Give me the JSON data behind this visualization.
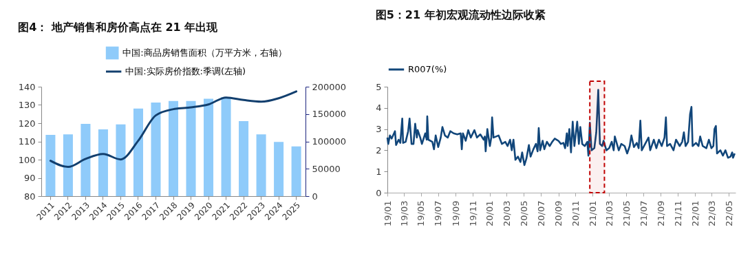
{
  "chart_data": [
    {
      "type": "bar",
      "title": "图4： 地产销售和房价高点在 21 年出现",
      "categories": [
        "2011",
        "2012",
        "2013",
        "2014",
        "2015",
        "2016",
        "2017",
        "2018",
        "2019",
        "2020",
        "2021",
        "2022",
        "2023",
        "2024",
        "2025"
      ],
      "series": [
        {
          "name": "中国:商品房销售面积（万平方米，右轴）",
          "type": "bar",
          "axis": "y2",
          "color": "#8fcbfa",
          "values": [
            112000,
            113000,
            132000,
            122000,
            131000,
            160000,
            171000,
            174000,
            174000,
            178000,
            181000,
            137000,
            113000,
            99000,
            91000
          ]
        },
        {
          "name": "中国:实际房价指数:季调(左轴)",
          "type": "line",
          "color": "#123f6e",
          "values": [
            99.4,
            96.0,
            100.4,
            103.1,
            100.1,
            110.4,
            124.3,
            127.7,
            128.7,
            130.3,
            134.1,
            132.7,
            131.8,
            133.7,
            137.4
          ]
        }
      ],
      "ylim": [
        80,
        140
      ],
      "yticks": [
        80,
        90,
        100,
        110,
        120,
        130,
        140
      ],
      "y2lim": [
        0,
        200000
      ],
      "y2ticks": [
        0,
        50000,
        100000,
        150000,
        200000
      ],
      "legend": "top",
      "grid": false
    },
    {
      "type": "line",
      "title": "图5：21 年初宏观流动性边际收紧",
      "x": [
        "2019-01-01",
        "2019-01-04",
        "2019-01-10",
        "2019-01-16",
        "2019-01-28",
        "2019-02-01",
        "2019-02-10",
        "2019-02-16",
        "2019-02-23",
        "2019-02-26",
        "2019-03-07",
        "2019-03-16",
        "2019-03-21",
        "2019-03-28",
        "2019-04-04",
        "2019-04-10",
        "2019-04-16",
        "2019-04-19",
        "2019-04-28",
        "2019-05-04",
        "2019-05-16",
        "2019-05-21",
        "2019-05-23",
        "2019-05-27",
        "2019-06-10",
        "2019-06-16",
        "2019-06-22",
        "2019-07-01",
        "2019-07-10",
        "2019-07-16",
        "2019-07-25",
        "2019-08-04",
        "2019-08-13",
        "2019-08-25",
        "2019-09-07",
        "2019-09-19",
        "2019-09-23",
        "2019-09-27",
        "2019-10-07",
        "2019-10-16",
        "2019-10-25",
        "2019-11-07",
        "2019-11-16",
        "2019-11-28",
        "2019-12-10",
        "2019-12-14",
        "2019-12-17",
        "2019-12-23",
        "2020-01-01",
        "2020-01-06",
        "2020-01-09",
        "2020-01-14",
        "2020-02-01",
        "2020-02-13",
        "2020-02-25",
        "2020-03-04",
        "2020-03-13",
        "2020-03-19",
        "2020-03-25",
        "2020-04-01",
        "2020-04-10",
        "2020-04-19",
        "2020-04-25",
        "2020-05-03",
        "2020-05-10",
        "2020-05-19",
        "2020-05-25",
        "2020-06-04",
        "2020-06-13",
        "2020-06-19",
        "2020-06-23",
        "2020-06-28",
        "2020-07-07",
        "2020-07-13",
        "2020-07-22",
        "2020-08-01",
        "2020-08-10",
        "2020-08-19",
        "2020-09-01",
        "2020-09-10",
        "2020-09-19",
        "2020-09-25",
        "2020-10-01",
        "2020-10-04",
        "2020-10-10",
        "2020-10-16",
        "2020-10-22",
        "2020-10-28",
        "2020-11-07",
        "2020-11-13",
        "2020-11-18",
        "2020-11-25",
        "2020-12-04",
        "2020-12-13",
        "2020-12-17",
        "2020-12-22",
        "2020-12-28",
        "2021-01-07",
        "2021-01-14",
        "2021-01-21",
        "2021-01-27",
        "2021-02-04",
        "2021-02-09",
        "2021-02-19",
        "2021-03-01",
        "2021-03-10",
        "2021-03-17",
        "2021-03-21",
        "2021-04-04",
        "2021-04-13",
        "2021-04-25",
        "2021-05-04",
        "2021-05-13",
        "2021-05-19",
        "2021-05-28",
        "2021-06-07",
        "2021-06-14",
        "2021-06-20",
        "2021-06-25",
        "2021-07-07",
        "2021-07-19",
        "2021-07-25",
        "2021-08-07",
        "2021-08-16",
        "2021-08-25",
        "2021-09-04",
        "2021-09-14",
        "2021-09-19",
        "2021-09-23",
        "2021-10-04",
        "2021-10-16",
        "2021-10-25",
        "2021-11-07",
        "2021-11-16",
        "2021-11-22",
        "2021-11-28",
        "2021-12-07",
        "2021-12-14",
        "2021-12-19",
        "2021-12-23",
        "2022-01-04",
        "2022-01-13",
        "2022-01-19",
        "2022-01-28",
        "2022-02-10",
        "2022-02-19",
        "2022-02-28",
        "2022-03-07",
        "2022-03-11",
        "2022-03-16",
        "2022-03-20",
        "2022-04-01",
        "2022-04-10",
        "2022-04-19",
        "2022-04-28",
        "2022-05-07",
        "2022-05-13",
        "2022-05-16",
        "2022-05-22"
      ],
      "series": [
        {
          "name": "R007(%)",
          "color": "#11467a",
          "values": [
            2.6,
            2.3,
            2.7,
            2.55,
            2.9,
            2.25,
            2.5,
            2.35,
            3.5,
            2.35,
            2.4,
            2.9,
            3.5,
            2.3,
            2.3,
            3.25,
            2.6,
            2.95,
            2.6,
            2.3,
            2.8,
            2.5,
            3.6,
            2.5,
            2.4,
            2.05,
            2.7,
            2.15,
            2.6,
            3.1,
            2.7,
            2.6,
            2.9,
            2.8,
            2.75,
            2.8,
            2.05,
            2.8,
            2.45,
            2.95,
            2.6,
            2.95,
            2.6,
            2.75,
            2.5,
            2.65,
            1.95,
            3.0,
            2.2,
            2.6,
            3.55,
            2.6,
            2.7,
            2.3,
            2.4,
            2.2,
            2.5,
            2.0,
            2.5,
            1.55,
            1.7,
            1.45,
            1.9,
            1.3,
            1.6,
            2.25,
            1.7,
            2.05,
            2.3,
            1.95,
            3.05,
            2.0,
            2.45,
            2.05,
            2.4,
            2.2,
            2.4,
            2.55,
            2.45,
            2.3,
            2.35,
            2.1,
            2.8,
            2.2,
            3.0,
            1.9,
            3.35,
            2.2,
            3.35,
            2.3,
            3.1,
            2.3,
            2.2,
            2.4,
            1.75,
            3.3,
            2.0,
            2.1,
            2.85,
            4.85,
            2.3,
            2.2,
            2.45,
            2.0,
            2.1,
            2.4,
            2.0,
            2.65,
            2.0,
            2.3,
            2.2,
            1.85,
            2.2,
            2.7,
            2.15,
            2.35,
            2.1,
            3.4,
            2.0,
            2.3,
            2.6,
            2.0,
            2.5,
            2.1,
            2.5,
            2.2,
            2.6,
            3.55,
            2.2,
            2.3,
            2.0,
            2.5,
            2.2,
            2.4,
            2.85,
            2.2,
            2.4,
            3.7,
            4.05,
            2.2,
            2.35,
            2.2,
            2.65,
            2.2,
            2.1,
            2.5,
            2.1,
            2.2,
            3.0,
            3.15,
            1.85,
            2.0,
            1.75,
            2.0,
            1.65,
            1.7,
            1.9,
            1.65,
            1.85
          ]
        }
      ],
      "xlim": [
        "2019-01-01",
        "2022-05-25"
      ],
      "xticks": [
        {
          "value": "2019-01-01",
          "label": "19/01"
        },
        {
          "value": "2019-03-01",
          "label": "19/03"
        },
        {
          "value": "2019-05-01",
          "label": "19/05"
        },
        {
          "value": "2019-07-01",
          "label": "19/07"
        },
        {
          "value": "2019-09-01",
          "label": "19/09"
        },
        {
          "value": "2019-11-01",
          "label": "19/11"
        },
        {
          "value": "2020-01-01",
          "label": "20/01"
        },
        {
          "value": "2020-03-01",
          "label": "20/03"
        },
        {
          "value": "2020-05-01",
          "label": "20/05"
        },
        {
          "value": "2020-07-01",
          "label": "20/07"
        },
        {
          "value": "2020-09-01",
          "label": "20/09"
        },
        {
          "value": "2020-11-01",
          "label": "20/11"
        },
        {
          "value": "2021-01-01",
          "label": "21/01"
        },
        {
          "value": "2021-03-01",
          "label": "21/03"
        },
        {
          "value": "2021-05-01",
          "label": "21/05"
        },
        {
          "value": "2021-07-01",
          "label": "21/07"
        },
        {
          "value": "2021-09-01",
          "label": "21/09"
        },
        {
          "value": "2021-11-01",
          "label": "21/11"
        },
        {
          "value": "2022-01-01",
          "label": "22/01"
        },
        {
          "value": "2022-03-01",
          "label": "22/03"
        },
        {
          "value": "2022-05-01",
          "label": "22/05"
        }
      ],
      "ylim": [
        0,
        5
      ],
      "yticks": [
        0,
        1,
        2,
        3,
        4,
        5
      ],
      "bands": [
        {
          "axis": "x",
          "from": "2020-12-22",
          "to": "2021-02-12",
          "color": "#c00000"
        }
      ],
      "legend": "top",
      "grid": false
    }
  ]
}
